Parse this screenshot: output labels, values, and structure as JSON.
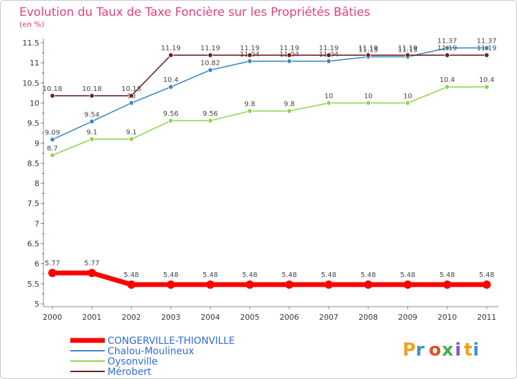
{
  "chart_data": {
    "type": "line",
    "title": "Evolution du Taux de Taxe Foncière sur les Propriétés Bâties",
    "unit_label": "(en %)",
    "x": [
      "2000",
      "2001",
      "2002",
      "2003",
      "2004",
      "2005",
      "2006",
      "2007",
      "2008",
      "2009",
      "2010",
      "2011"
    ],
    "ylim": [
      5,
      11.5
    ],
    "y_ticks": [
      "5",
      "5.5",
      "6",
      "6.5",
      "7",
      "7.5",
      "8",
      "8.5",
      "9",
      "9.5",
      "10",
      "10.5",
      "11",
      "11.5"
    ],
    "grid": false,
    "legend_position": "bottom-left",
    "series": [
      {
        "name": "CONGERVILLE-THIONVILLE",
        "color": "#ff0000",
        "values": [
          5.77,
          5.77,
          5.48,
          5.48,
          5.48,
          5.48,
          5.48,
          5.48,
          5.48,
          5.48,
          5.48,
          5.48
        ]
      },
      {
        "name": "Chalou-Moulineux",
        "color": "#3b86c6",
        "values": [
          9.09,
          9.54,
          10,
          10.4,
          10.82,
          11.04,
          11.04,
          11.04,
          11.15,
          11.15,
          11.37,
          11.37
        ]
      },
      {
        "name": "Oysonville",
        "color": "#8fd44f",
        "values": [
          8.7,
          9.1,
          9.1,
          9.56,
          9.56,
          9.8,
          9.8,
          10,
          10,
          10,
          10.4,
          10.4
        ]
      },
      {
        "name": "Mérobert",
        "color": "#6b1f1f",
        "values": [
          10.18,
          10.18,
          10.18,
          11.19,
          11.19,
          11.19,
          11.19,
          11.19,
          11.19,
          11.19,
          11.19,
          11.19
        ]
      }
    ]
  },
  "logo": {
    "text": "Proxiti"
  }
}
